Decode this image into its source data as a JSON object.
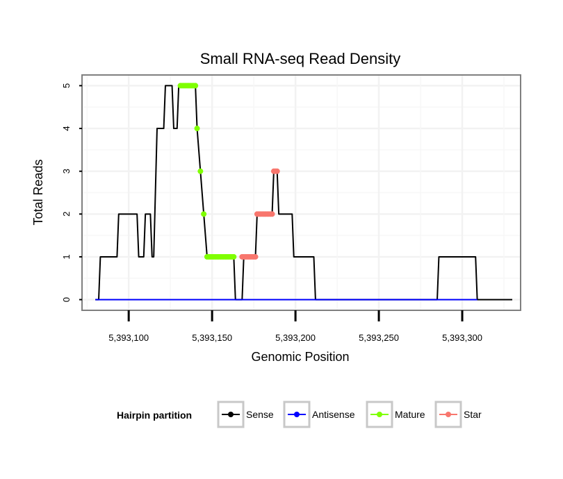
{
  "chart_data": {
    "type": "line",
    "title": "Small RNA-seq Read Density",
    "xlabel": "Genomic Position",
    "ylabel": "Total Reads",
    "xlim": [
      5393072,
      5393335
    ],
    "ylim": [
      -0.25,
      5.25
    ],
    "x_ticks": [
      5393100,
      5393150,
      5393200,
      5393250,
      5393300
    ],
    "x_tick_labels": [
      "5,393,100",
      "5,393,150",
      "5,393,200",
      "5,393,250",
      "5,393,300"
    ],
    "y_ticks": [
      0,
      1,
      2,
      3,
      4,
      5
    ],
    "y_tick_labels": [
      "0",
      "1",
      "2",
      "3",
      "4",
      "5"
    ],
    "grid": true,
    "legend_position": "bottom",
    "legend_title": "Hairpin partition",
    "series": [
      {
        "name": "Sense",
        "color": "#000000",
        "points": [
          [
            5393080,
            0
          ],
          [
            5393082,
            0
          ],
          [
            5393083,
            1
          ],
          [
            5393093,
            1
          ],
          [
            5393094,
            2
          ],
          [
            5393105,
            2
          ],
          [
            5393106,
            1
          ],
          [
            5393109,
            1
          ],
          [
            5393110,
            2
          ],
          [
            5393113,
            2
          ],
          [
            5393114,
            1
          ],
          [
            5393115,
            1
          ],
          [
            5393117,
            4
          ],
          [
            5393121,
            4
          ],
          [
            5393122,
            5
          ],
          [
            5393126,
            5
          ],
          [
            5393127,
            4
          ],
          [
            5393129,
            4
          ],
          [
            5393130,
            5
          ],
          [
            5393140,
            5
          ],
          [
            5393141,
            4
          ],
          [
            5393143,
            3
          ],
          [
            5393145,
            2
          ],
          [
            5393147,
            1
          ],
          [
            5393163,
            1
          ],
          [
            5393164,
            0
          ],
          [
            5393168,
            0
          ],
          [
            5393169,
            1
          ],
          [
            5393176,
            1
          ],
          [
            5393177,
            2
          ],
          [
            5393186,
            2
          ],
          [
            5393187,
            3
          ],
          [
            5393189,
            3
          ],
          [
            5393190,
            2
          ],
          [
            5393198,
            2
          ],
          [
            5393199,
            1
          ],
          [
            5393211,
            1
          ],
          [
            5393212,
            0
          ],
          [
            5393285,
            0
          ],
          [
            5393286,
            1
          ],
          [
            5393308,
            1
          ],
          [
            5393309,
            0
          ],
          [
            5393330,
            0
          ]
        ]
      },
      {
        "name": "Antisense",
        "color": "#0000ff",
        "points": [
          [
            5393080,
            0
          ],
          [
            5393309,
            0
          ]
        ]
      },
      {
        "name": "Mature",
        "color": "#7fff00",
        "x": [
          5393131,
          5393132,
          5393133,
          5393134,
          5393135,
          5393136,
          5393137,
          5393138,
          5393139,
          5393140,
          5393141,
          5393143,
          5393145,
          5393147,
          5393148,
          5393149,
          5393150,
          5393151,
          5393152,
          5393153,
          5393154,
          5393155,
          5393156,
          5393157,
          5393158,
          5393159,
          5393160,
          5393161,
          5393162,
          5393163
        ],
        "y": [
          5,
          5,
          5,
          5,
          5,
          5,
          5,
          5,
          5,
          5,
          4,
          3,
          2,
          1,
          1,
          1,
          1,
          1,
          1,
          1,
          1,
          1,
          1,
          1,
          1,
          1,
          1,
          1,
          1,
          1
        ]
      },
      {
        "name": "Star",
        "color": "#f8766d",
        "x": [
          5393168,
          5393169,
          5393170,
          5393171,
          5393172,
          5393173,
          5393174,
          5393175,
          5393176,
          5393177,
          5393178,
          5393179,
          5393180,
          5393181,
          5393182,
          5393183,
          5393184,
          5393185,
          5393186,
          5393187,
          5393188,
          5393189
        ],
        "y": [
          1,
          1,
          1,
          1,
          1,
          1,
          1,
          1,
          1,
          2,
          2,
          2,
          2,
          2,
          2,
          2,
          2,
          2,
          2,
          3,
          3,
          3
        ]
      }
    ]
  }
}
